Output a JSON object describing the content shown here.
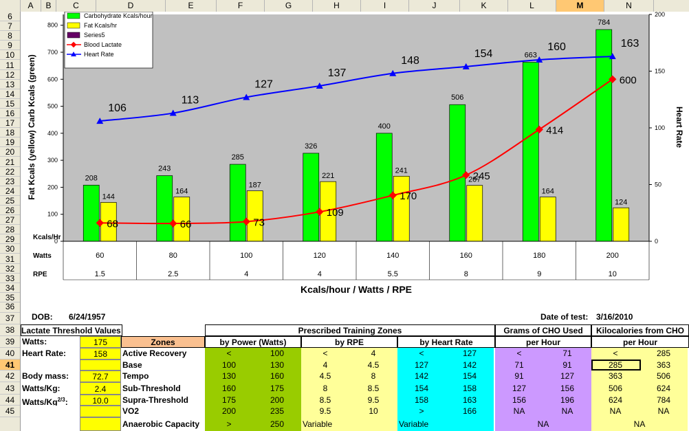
{
  "columns": [
    "A",
    "B",
    "C",
    "D",
    "E",
    "F",
    "G",
    "H",
    "I",
    "J",
    "K",
    "L",
    "M",
    "N"
  ],
  "selected_column": "M",
  "rows": [
    "6",
    "7",
    "8",
    "9",
    "10",
    "11",
    "12",
    "13",
    "14",
    "15",
    "16",
    "17",
    "18",
    "19",
    "20",
    "21",
    "22",
    "23",
    "24",
    "25",
    "26",
    "27",
    "28",
    "29",
    "30",
    "31",
    "32",
    "33",
    "34",
    "35",
    "36",
    "37",
    "38",
    "39",
    "40",
    "41",
    "42",
    "43",
    "44",
    "45"
  ],
  "selected_row": "41",
  "chart_data": {
    "type": "bar",
    "ylabel_left": "Fat Kcals (yellow) Carb Kcals (green)",
    "ylabel_right": "Heart Rate",
    "xlabel": "Kcals/hour / Watts / RPE",
    "yticks_left": [
      "0",
      "100",
      "200",
      "300",
      "400",
      "500",
      "600",
      "700",
      "800"
    ],
    "yticks_right": [
      "0",
      "50",
      "100",
      "150",
      "200"
    ],
    "ylim_left": [
      0,
      840
    ],
    "ylim_right": [
      0,
      200
    ],
    "legend": [
      "Carbohydrate Kcals/hour",
      "Fat Kcals/hr",
      "Series5",
      "Blood Lactate",
      "Heart Rate"
    ],
    "legend_colors": [
      "#00ff00",
      "#ffff00",
      "#660066",
      "#ff0000",
      "#0000ff"
    ],
    "categories_labels": {
      "kcals": "Kcals/Hr",
      "watts": "Watts",
      "rpe": "RPE"
    },
    "watts": [
      "60",
      "80",
      "100",
      "120",
      "140",
      "160",
      "180",
      "200"
    ],
    "rpe": [
      "1.5",
      "2.5",
      "4",
      "4",
      "5.5",
      "8",
      "9",
      "10"
    ],
    "series": [
      {
        "name": "Carbohydrate Kcals/hour",
        "values": [
          208,
          243,
          285,
          326,
          400,
          506,
          663,
          784
        ],
        "labels": [
          "208",
          "243",
          "285",
          "326",
          "400",
          "506",
          "663",
          "784"
        ]
      },
      {
        "name": "Fat Kcals/hr",
        "values": [
          144,
          164,
          187,
          221,
          241,
          207,
          164,
          124
        ],
        "labels": [
          "144",
          "164",
          "187",
          "221",
          "241",
          "207",
          "164",
          "124"
        ]
      },
      {
        "name": "Blood Lactate",
        "values": [
          68,
          66,
          73,
          109,
          170,
          245,
          414,
          600
        ],
        "labels": [
          "68",
          "66",
          "73",
          "109",
          "170",
          "245",
          "414",
          "600"
        ]
      },
      {
        "name": "Heart Rate",
        "values": [
          106,
          113,
          127,
          137,
          148,
          154,
          160,
          163
        ],
        "labels": [
          "106",
          "113",
          "127",
          "137",
          "148",
          "154",
          "160",
          "163"
        ]
      }
    ]
  },
  "info": {
    "dob_label": "DOB:",
    "dob_value": "6/24/1957",
    "test_date_label": "Date of test:",
    "test_date_value": "3/16/2010",
    "lt_title": "Lactate Threshold Values",
    "watts_label": "Watts:",
    "watts_value": "175",
    "hr_label": "Heart Rate:",
    "hr_value": "158",
    "mass_label": "Body mass:",
    "mass_value": "72.7",
    "wkg_label": "Watts/Kg:",
    "wkg_value": "2.4",
    "wkg23_label": "Watts/Kg",
    "wkg23_sup": "2/3",
    "wkg23_colon": ":",
    "wkg23_value": "10.0"
  },
  "zones_table": {
    "title": "Prescribed Training Zones",
    "zones_header": "Zones",
    "power_header": "by Power (Watts)",
    "rpe_header": "by RPE",
    "hr_header": "by Heart Rate",
    "cho_header_1": "Grams of CHO Used",
    "cho_header_2": "per Hour",
    "kcal_header_1": "Kilocalories from CHO",
    "kcal_header_2": "per Hour",
    "rows": [
      {
        "zone": "Active Recovery",
        "p1": "<",
        "p2": "100",
        "r1": "<",
        "r2": "4",
        "h1": "<",
        "h2": "127",
        "g1": "<",
        "g2": "71",
        "k1": "<",
        "k2": "285"
      },
      {
        "zone": "Base",
        "p1": "100",
        "p2": "130",
        "r1": "4",
        "r2": "4.5",
        "h1": "127",
        "h2": "142",
        "g1": "71",
        "g2": "91",
        "k1": "285",
        "k2": "363"
      },
      {
        "zone": "Tempo",
        "p1": "130",
        "p2": "160",
        "r1": "4.5",
        "r2": "8",
        "h1": "142",
        "h2": "154",
        "g1": "91",
        "g2": "127",
        "k1": "363",
        "k2": "506"
      },
      {
        "zone": "Sub-Threshold",
        "p1": "160",
        "p2": "175",
        "r1": "8",
        "r2": "8.5",
        "h1": "154",
        "h2": "158",
        "g1": "127",
        "g2": "156",
        "k1": "506",
        "k2": "624"
      },
      {
        "zone": "Supra-Threshold",
        "p1": "175",
        "p2": "200",
        "r1": "8.5",
        "r2": "9.5",
        "h1": "158",
        "h2": "163",
        "g1": "156",
        "g2": "196",
        "k1": "624",
        "k2": "784"
      },
      {
        "zone": "VO2",
        "p1": "200",
        "p2": "235",
        "r1": "9.5",
        "r2": "10",
        "h1": ">",
        "h2": "166",
        "g1": "NA",
        "g2": "NA",
        "k1": "NA",
        "k2": "NA"
      },
      {
        "zone": "Anaerobic Capacity",
        "p1": ">",
        "p2": "250",
        "r1": "Variable",
        "r2": "",
        "h1": "Variable",
        "h2": "",
        "g1": "NA",
        "g2": "",
        "k1": "NA",
        "k2": ""
      }
    ]
  },
  "colors": {
    "lt_value": "#ffff00",
    "zones_header": "#fac090",
    "power": "#99cc00",
    "rpe": "#ffff99",
    "hr": "#00ffff",
    "cho": "#cc99ff",
    "kcal": "#ffff99",
    "plot_area": "#c0c0c0"
  }
}
